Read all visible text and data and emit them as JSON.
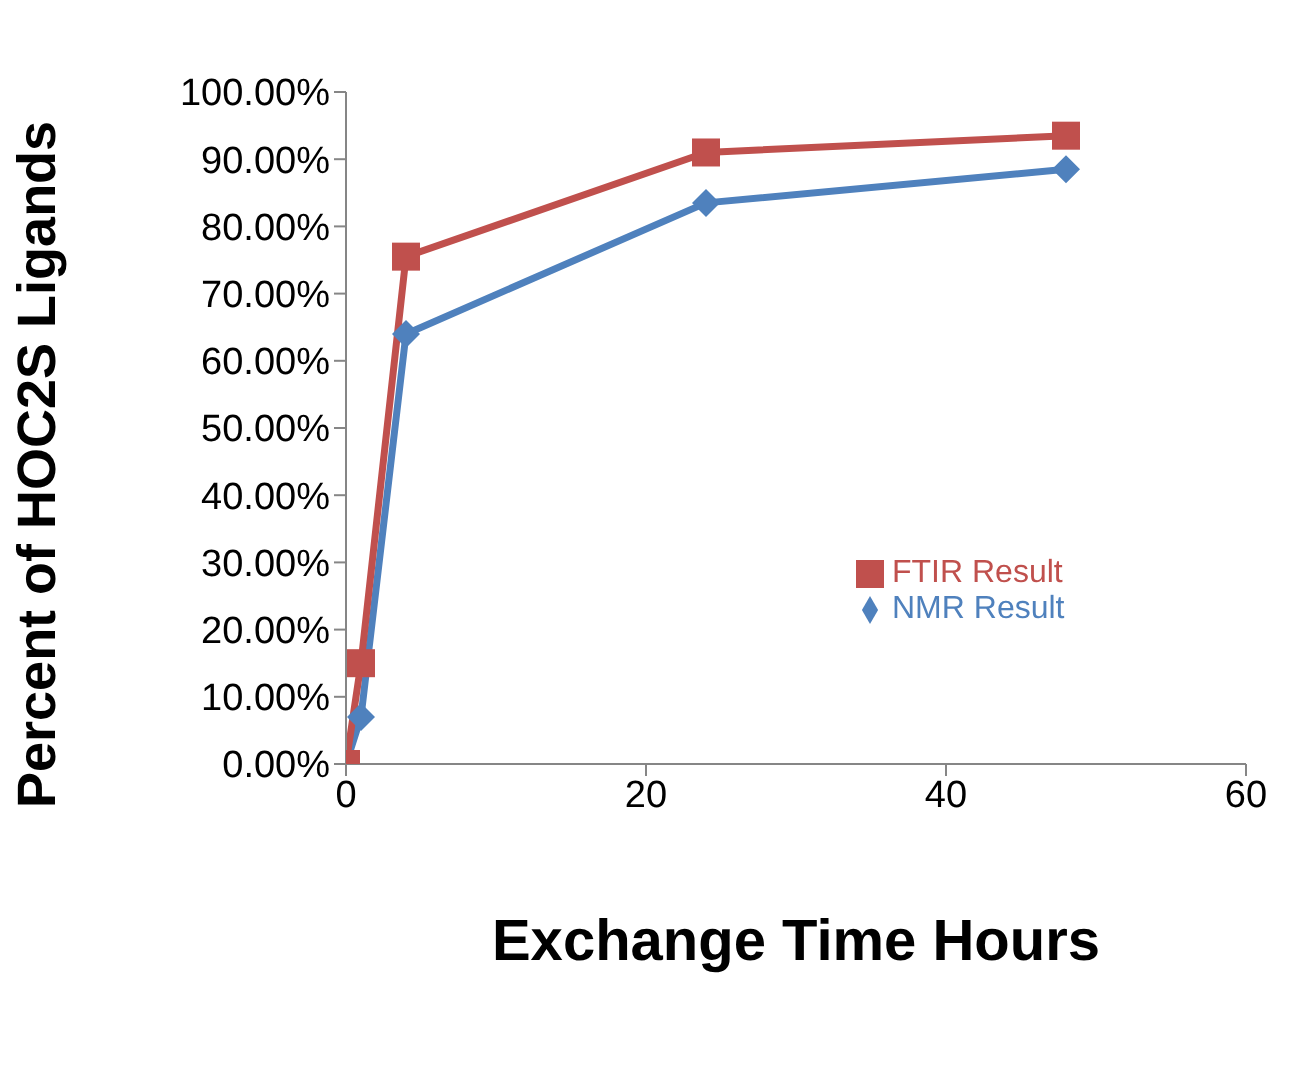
{
  "chart_data": {
    "type": "line",
    "xlabel": "Exchange Time  Hours",
    "ylabel": "Percent of HOC2S Ligands",
    "x": [
      0,
      1,
      4,
      24,
      48
    ],
    "series": [
      {
        "name": "NMR Result",
        "color": "#4f81bd",
        "marker": "diamond",
        "values": [
          0,
          7,
          64,
          83.5,
          88.5
        ]
      },
      {
        "name": "FTIR Result",
        "color": "#c0504d",
        "marker": "square",
        "values": [
          0,
          15,
          75.5,
          91,
          93.5
        ]
      }
    ],
    "xlim": [
      0,
      60
    ],
    "xticks": [
      0,
      20,
      40,
      60
    ],
    "ylim": [
      0,
      100
    ],
    "yticks": [
      {
        "value": 0,
        "label": "0.00%"
      },
      {
        "value": 10,
        "label": "10.00%"
      },
      {
        "value": 20,
        "label": "20.00%"
      },
      {
        "value": 30,
        "label": "30.00%"
      },
      {
        "value": 40,
        "label": "40.00%"
      },
      {
        "value": 50,
        "label": "50.00%"
      },
      {
        "value": 60,
        "label": "60.00%"
      },
      {
        "value": 70,
        "label": "70.00%"
      },
      {
        "value": 80,
        "label": "80.00%"
      },
      {
        "value": 90,
        "label": "90.00%"
      },
      {
        "value": 100,
        "label": "100.00%"
      }
    ],
    "grid": false,
    "legend": "right",
    "line_style": "solid"
  }
}
